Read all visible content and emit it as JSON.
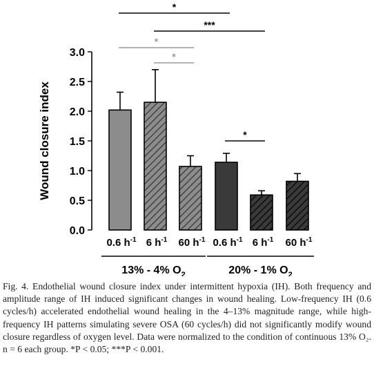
{
  "chart_data": {
    "type": "bar",
    "ylabel": "Wound closure index",
    "ylim": [
      0,
      3.0
    ],
    "yticks": [
      "0.0",
      "0.5",
      "1.0",
      "1.5",
      "2.0",
      "2.5",
      "3.0"
    ],
    "categories": [
      {
        "rate": "0.6 h",
        "sup": "-1"
      },
      {
        "rate": "6 h",
        "sup": "-1"
      },
      {
        "rate": "60 h",
        "sup": "-1"
      },
      {
        "rate": "0.6 h",
        "sup": "-1"
      },
      {
        "rate": "6 h",
        "sup": "-1"
      },
      {
        "rate": "60 h",
        "sup": "-1"
      }
    ],
    "groups": [
      {
        "label": "13% - 4% O",
        "sub": "2",
        "members": [
          0,
          1,
          2
        ]
      },
      {
        "label": "20% - 1% O",
        "sub": "2",
        "members": [
          3,
          4,
          5
        ]
      }
    ],
    "values": [
      2.02,
      2.15,
      1.07,
      1.14,
      0.59,
      0.82
    ],
    "errors": [
      0.3,
      0.55,
      0.18,
      0.15,
      0.07,
      0.13
    ],
    "fill": [
      "#8c8c8c",
      "#8c8c8c",
      "#8c8c8c",
      "#3a3a3a",
      "#3a3a3a",
      "#3a3a3a"
    ],
    "hatched": [
      false,
      true,
      true,
      false,
      true,
      true
    ],
    "significance": [
      {
        "from": 0,
        "to": 3,
        "label": "*",
        "color": "#000000"
      },
      {
        "from": 1,
        "to": 4,
        "label": "***",
        "color": "#000000"
      },
      {
        "from": 0,
        "to": 2,
        "label": "*",
        "color": "#9a9a9a"
      },
      {
        "from": 1,
        "to": 2,
        "label": "*",
        "color": "#9a9a9a"
      },
      {
        "from": 3,
        "to": 4,
        "label": "*",
        "color": "#000000"
      }
    ]
  },
  "caption": "Fig. 4. Endothelial wound closure index under intermittent hypoxia (IH). Both frequency and amplitude range of IH induced significant changes in wound healing. Low-frequency IH (0.6 cycles/h) accelerated endothelial wound healing in the 4–13% magnitude range, while high-frequency IH patterns simulating severe OSA (60 cycles/h) did not significantly modify wound closure regardless of oxygen level. Data were normalized to the condition of continuous 13% O₂. n = 6 each group. *P < 0.05; ***P < 0.001."
}
